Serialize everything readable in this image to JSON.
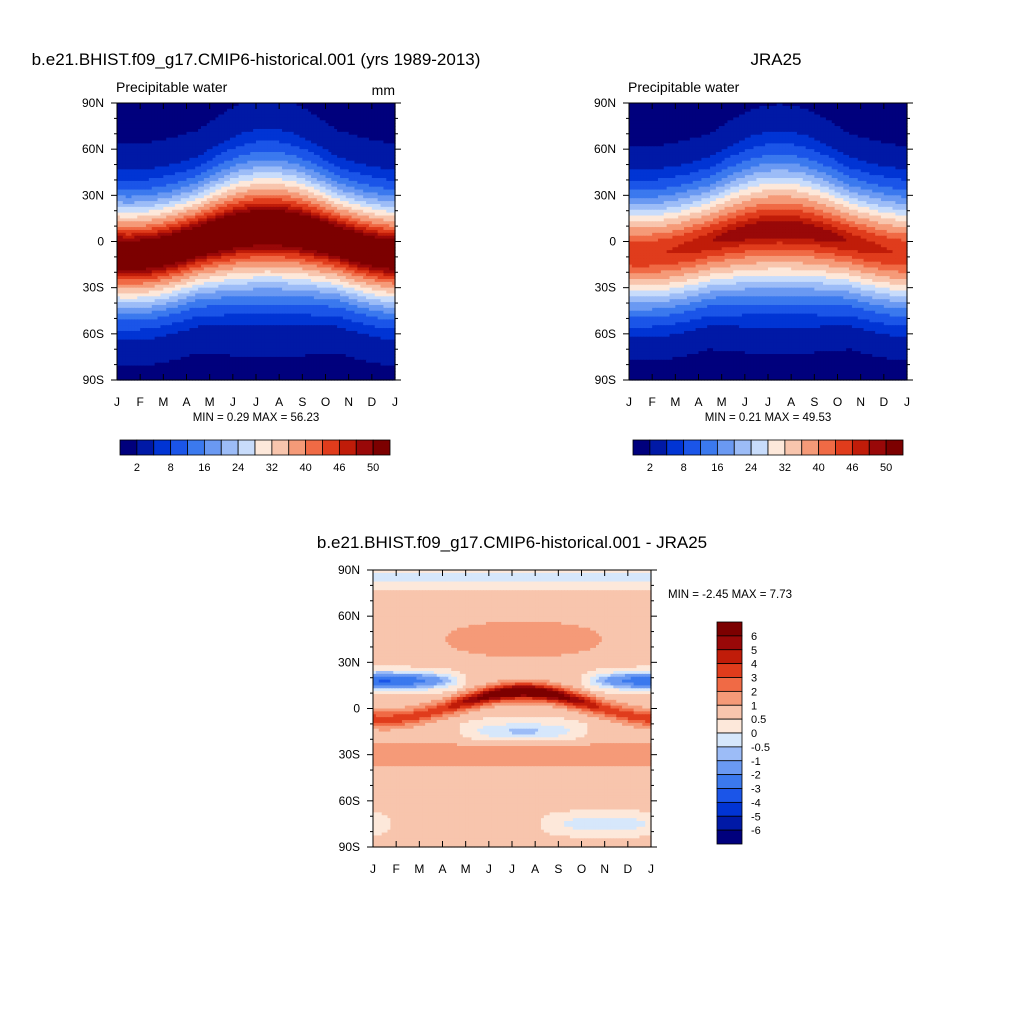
{
  "chart_data": [
    {
      "type": "heatmap",
      "title": "b.e21.BHIST.f09_g17.CMIP6-historical.001 (yrs 1989-2013)",
      "subtitle_left": "Precipitable water",
      "subtitle_right": "mm",
      "stats_label": "MIN =   0.29 MAX =  56.23",
      "x_tick_labels": [
        "J",
        "F",
        "M",
        "A",
        "M",
        "J",
        "J",
        "A",
        "S",
        "O",
        "N",
        "D",
        "J"
      ],
      "y_tick_labels": [
        "90N",
        "60N",
        "30N",
        "0",
        "30S",
        "60S",
        "90S"
      ],
      "y_ticks": [
        90,
        60,
        30,
        0,
        -30,
        -60,
        -90
      ],
      "ylim": [
        -90,
        90
      ],
      "levels": [
        2,
        5,
        8,
        12,
        16,
        20,
        24,
        28,
        32,
        36,
        40,
        43,
        46,
        48,
        50
      ],
      "colors": [
        "#00007d",
        "#0019a6",
        "#0134d4",
        "#1b55e8",
        "#3b79ee",
        "#6a99f2",
        "#9cbcf7",
        "#c8dcfb",
        "#fde8da",
        "#f8c5ad",
        "#f59a78",
        "#f06a45",
        "#e03c1c",
        "#c01c09",
        "#990808",
        "#7c0000"
      ],
      "colorbar_labels": [
        "2",
        "8",
        "16",
        "24",
        "32",
        "40",
        "46",
        "50"
      ],
      "model": {
        "equator_peak": 54,
        "pole_value": 1.5,
        "width_deg": 25,
        "shift_amp_deg": 9,
        "peak_season": 1.0
      }
    },
    {
      "type": "heatmap",
      "title": "JRA25",
      "subtitle_left": "Precipitable water",
      "stats_label": "MIN =   0.21 MAX =  49.53",
      "x_tick_labels": [
        "J",
        "F",
        "M",
        "A",
        "M",
        "J",
        "J",
        "A",
        "S",
        "O",
        "N",
        "D",
        "J"
      ],
      "y_tick_labels": [
        "90N",
        "60N",
        "30N",
        "0",
        "30S",
        "60S",
        "90S"
      ],
      "y_ticks": [
        90,
        60,
        30,
        0,
        -30,
        -60,
        -90
      ],
      "ylim": [
        -90,
        90
      ],
      "levels": [
        2,
        5,
        8,
        12,
        16,
        20,
        24,
        28,
        32,
        36,
        40,
        43,
        46,
        48,
        50
      ],
      "colors": [
        "#00007d",
        "#0019a6",
        "#0134d4",
        "#1b55e8",
        "#3b79ee",
        "#6a99f2",
        "#9cbcf7",
        "#c8dcfb",
        "#fde8da",
        "#f8c5ad",
        "#f59a78",
        "#f06a45",
        "#e03c1c",
        "#c01c09",
        "#990808",
        "#7c0000"
      ],
      "colorbar_labels": [
        "2",
        "8",
        "16",
        "24",
        "32",
        "40",
        "46",
        "50"
      ],
      "model": {
        "equator_peak": 47.5,
        "pole_value": 1.2,
        "width_deg": 26,
        "shift_amp_deg": 8,
        "peak_season": 0.6
      }
    },
    {
      "type": "heatmap",
      "title": "b.e21.BHIST.f09_g17.CMIP6-historical.001 - JRA25",
      "stats_label": "MIN =  -2.45 MAX =   7.73",
      "x_tick_labels": [
        "J",
        "F",
        "M",
        "A",
        "M",
        "J",
        "J",
        "A",
        "S",
        "O",
        "N",
        "D",
        "J"
      ],
      "y_tick_labels": [
        "90N",
        "60N",
        "30N",
        "0",
        "30S",
        "60S",
        "90S"
      ],
      "y_ticks": [
        90,
        60,
        30,
        0,
        -30,
        -60,
        -90
      ],
      "ylim": [
        -90,
        90
      ],
      "levels": [
        -6,
        -5,
        -4,
        -3,
        -2,
        -1,
        -0.5,
        0,
        0.5,
        1,
        2,
        3,
        4,
        5,
        6
      ],
      "colors": [
        "#00007d",
        "#0019a6",
        "#0134d4",
        "#1b55e8",
        "#3b79ee",
        "#6a99f2",
        "#9cbcf7",
        "#d6e7fb",
        "#fde8da",
        "#f8c5ad",
        "#f59a78",
        "#f06a45",
        "#e03c1c",
        "#c01c09",
        "#990808",
        "#7c0000"
      ],
      "colorbar_labels": [
        "6",
        "5",
        "4",
        "3",
        "2",
        "1",
        "0.5",
        "0",
        "-0.5",
        "-1",
        "-2",
        "-3",
        "-4",
        "-5",
        "-6"
      ]
    }
  ]
}
